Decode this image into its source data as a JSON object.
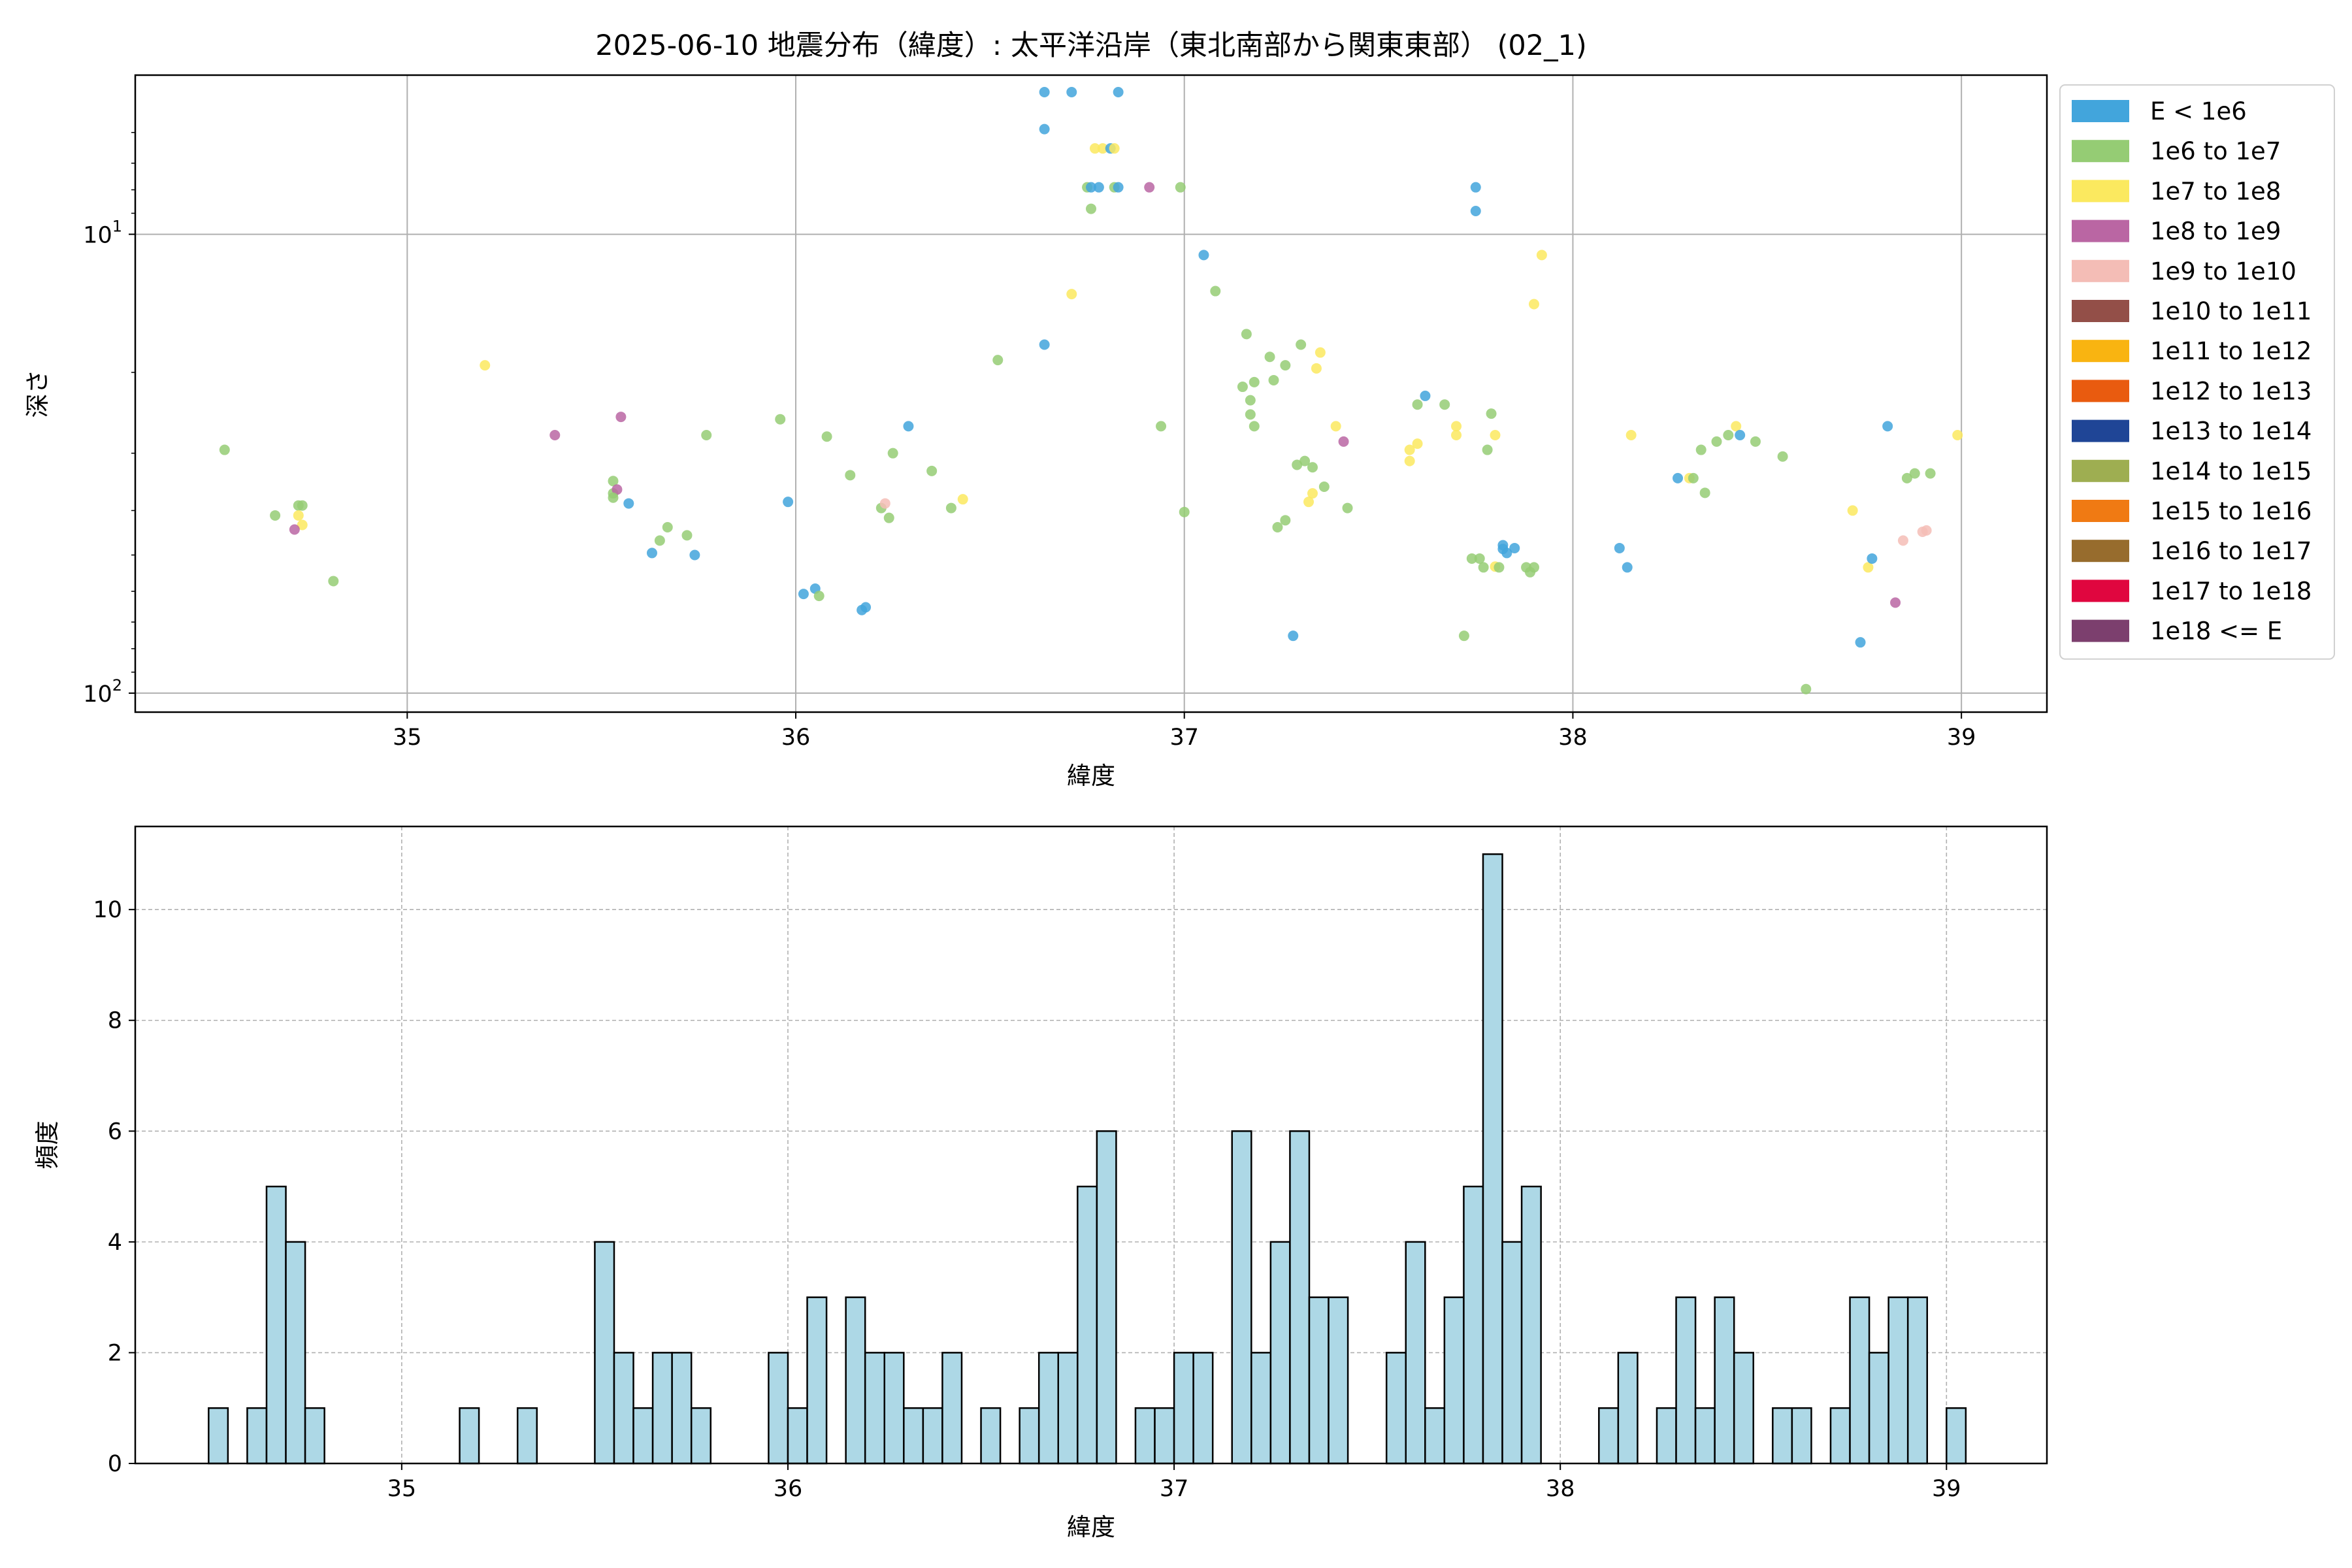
{
  "figure_title": "2025-06-10 地震分布（緯度）: 太平洋沿岸（東北南部から関東東部） (02_1)",
  "chart_data": [
    {
      "type": "scatter",
      "title": "2025-06-10 地震分布（緯度）: 太平洋沿岸（東北南部から関東東部） (02_1)",
      "xlabel": "緯度",
      "ylabel": "深さ",
      "xlim": [
        34.3,
        39.22
      ],
      "ylim": [
        110,
        4.5
      ],
      "yscale": "log",
      "y_inverted": true,
      "grid": true,
      "legend_position": "outside-right",
      "xticks": [
        "35",
        "36",
        "37",
        "38",
        "39"
      ],
      "xtick_values": [
        35,
        36,
        37,
        38,
        39
      ],
      "yticks": [
        {
          "base": "10",
          "exp": "1",
          "value": 10
        },
        {
          "base": "10",
          "exp": "2",
          "value": 100
        }
      ],
      "legend": [
        {
          "label": "E < 1e6",
          "color": "#42a5dc"
        },
        {
          "label": "1e6 to 1e7",
          "color": "#95cc74"
        },
        {
          "label": "1e7 to 1e8",
          "color": "#fbe95f"
        },
        {
          "label": "1e8 to 1e9",
          "color": "#ba66a3"
        },
        {
          "label": "1e9 to 1e10",
          "color": "#f4bdb6"
        },
        {
          "label": "1e10 to 1e11",
          "color": "#934f48"
        },
        {
          "label": "1e11 to 1e12",
          "color": "#f9b411"
        },
        {
          "label": "1e12 to 1e13",
          "color": "#e95b0f"
        },
        {
          "label": "1e13 to 1e14",
          "color": "#1f4596"
        },
        {
          "label": "1e14 to 1e15",
          "color": "#9eae51"
        },
        {
          "label": "1e15 to 1e16",
          "color": "#f07a13"
        },
        {
          "label": "1e16 to 1e17",
          "color": "#976c2d"
        },
        {
          "label": "1e17 to 1e18",
          "color": "#e0063f"
        },
        {
          "label": "1e18 <= E",
          "color": "#7c3f6e"
        }
      ],
      "points": [
        [
          34.53,
          29.5,
          1
        ],
        [
          34.66,
          41,
          1
        ],
        [
          34.72,
          39,
          1
        ],
        [
          34.73,
          39,
          1
        ],
        [
          34.72,
          41,
          2
        ],
        [
          34.73,
          43,
          2
        ],
        [
          34.71,
          44,
          3
        ],
        [
          34.81,
          57,
          1
        ],
        [
          35.2,
          19.3,
          2
        ],
        [
          35.38,
          27.4,
          3
        ],
        [
          35.53,
          34.5,
          1
        ],
        [
          35.53,
          36.7,
          1
        ],
        [
          35.54,
          36,
          3
        ],
        [
          35.53,
          37.5,
          1
        ],
        [
          35.55,
          25,
          3
        ],
        [
          35.57,
          38.6,
          0
        ],
        [
          35.63,
          49.5,
          0
        ],
        [
          35.65,
          46.5,
          1
        ],
        [
          35.67,
          43.5,
          1
        ],
        [
          35.72,
          45.3,
          1
        ],
        [
          35.74,
          50,
          0
        ],
        [
          35.77,
          27.4,
          1
        ],
        [
          35.96,
          25.3,
          1
        ],
        [
          35.98,
          38.3,
          0
        ],
        [
          36.02,
          60.8,
          0
        ],
        [
          36.05,
          59.2,
          0
        ],
        [
          36.06,
          61.4,
          1
        ],
        [
          36.08,
          27.6,
          1
        ],
        [
          36.14,
          33.5,
          1
        ],
        [
          36.17,
          65.9,
          0
        ],
        [
          36.18,
          65,
          0
        ],
        [
          36.22,
          39.5,
          1
        ],
        [
          36.23,
          38.6,
          4
        ],
        [
          36.24,
          41.5,
          1
        ],
        [
          36.25,
          30,
          1
        ],
        [
          36.29,
          26.2,
          0
        ],
        [
          36.35,
          32.8,
          1
        ],
        [
          36.4,
          39.5,
          1
        ],
        [
          36.43,
          37.8,
          2
        ],
        [
          36.52,
          18.8,
          1
        ],
        [
          36.64,
          17.4,
          0
        ],
        [
          36.64,
          4.9,
          0
        ],
        [
          36.64,
          5.9,
          0
        ],
        [
          36.71,
          4.9,
          0
        ],
        [
          36.75,
          7.9,
          1
        ],
        [
          36.76,
          7.9,
          0
        ],
        [
          36.76,
          8.8,
          1
        ],
        [
          36.77,
          6.5,
          2
        ],
        [
          36.78,
          7.9,
          0
        ],
        [
          36.79,
          6.5,
          2
        ],
        [
          36.81,
          6.5,
          0
        ],
        [
          36.82,
          7.9,
          1
        ],
        [
          36.83,
          7.9,
          0
        ],
        [
          36.82,
          6.5,
          2
        ],
        [
          36.83,
          4.9,
          0
        ],
        [
          36.71,
          13.5,
          2
        ],
        [
          36.91,
          7.9,
          3
        ],
        [
          36.94,
          26.2,
          1
        ],
        [
          36.99,
          7.9,
          1
        ],
        [
          37.0,
          40.3,
          1
        ],
        [
          37.05,
          11.1,
          0
        ],
        [
          37.08,
          13.3,
          1
        ],
        [
          37.15,
          21.5,
          1
        ],
        [
          37.16,
          16.5,
          1
        ],
        [
          37.17,
          24.7,
          1
        ],
        [
          37.17,
          23,
          1
        ],
        [
          37.18,
          26.2,
          1
        ],
        [
          37.18,
          21,
          1
        ],
        [
          37.22,
          18.5,
          1
        ],
        [
          37.23,
          20.8,
          1
        ],
        [
          37.24,
          43.5,
          1
        ],
        [
          37.26,
          19.3,
          1
        ],
        [
          37.26,
          42,
          1
        ],
        [
          37.29,
          31.8,
          1
        ],
        [
          37.3,
          17.4,
          1
        ],
        [
          37.31,
          31.2,
          1
        ],
        [
          37.32,
          38.3,
          2
        ],
        [
          37.33,
          32.2,
          1
        ],
        [
          37.33,
          36.7,
          2
        ],
        [
          37.34,
          19.6,
          2
        ],
        [
          37.35,
          18.1,
          2
        ],
        [
          37.36,
          35.5,
          1
        ],
        [
          37.39,
          26.2,
          2
        ],
        [
          37.41,
          28.3,
          3
        ],
        [
          37.42,
          39.5,
          1
        ],
        [
          37.28,
          75,
          0
        ],
        [
          37.58,
          31.2,
          2
        ],
        [
          37.58,
          29.5,
          2
        ],
        [
          37.6,
          28.6,
          2
        ],
        [
          37.6,
          23.5,
          1
        ],
        [
          37.62,
          22.5,
          0
        ],
        [
          37.67,
          23.5,
          1
        ],
        [
          37.7,
          26.2,
          2
        ],
        [
          37.7,
          27.4,
          2
        ],
        [
          37.72,
          75,
          1
        ],
        [
          37.74,
          50.9,
          1
        ],
        [
          37.75,
          7.9,
          0
        ],
        [
          37.75,
          8.9,
          0
        ],
        [
          37.76,
          50.9,
          1
        ],
        [
          37.77,
          53.2,
          1
        ],
        [
          37.78,
          29.5,
          1
        ],
        [
          37.79,
          24.6,
          1
        ],
        [
          37.8,
          27.4,
          2
        ],
        [
          37.8,
          53,
          2
        ],
        [
          37.81,
          53.2,
          1
        ],
        [
          37.82,
          47.6,
          0
        ],
        [
          37.82,
          48.5,
          0
        ],
        [
          37.83,
          49.5,
          0
        ],
        [
          37.85,
          48.3,
          0
        ],
        [
          37.88,
          53.2,
          1
        ],
        [
          37.89,
          54.5,
          1
        ],
        [
          37.9,
          53.2,
          1
        ],
        [
          37.9,
          14.2,
          2
        ],
        [
          37.92,
          11.1,
          2
        ],
        [
          38.12,
          48.3,
          0
        ],
        [
          38.14,
          53.2,
          0
        ],
        [
          38.15,
          27.4,
          2
        ],
        [
          38.27,
          34,
          0
        ],
        [
          38.3,
          34,
          2
        ],
        [
          38.31,
          34,
          1
        ],
        [
          38.33,
          29.5,
          1
        ],
        [
          38.34,
          36.6,
          1
        ],
        [
          38.37,
          28.3,
          1
        ],
        [
          38.4,
          27.4,
          1
        ],
        [
          38.42,
          26.2,
          2
        ],
        [
          38.43,
          27.4,
          0
        ],
        [
          38.47,
          28.3,
          1
        ],
        [
          38.54,
          30.5,
          1
        ],
        [
          38.6,
          98,
          1
        ],
        [
          38.72,
          40,
          2
        ],
        [
          38.74,
          77.5,
          0
        ],
        [
          38.76,
          53.2,
          2
        ],
        [
          38.77,
          50.9,
          0
        ],
        [
          38.81,
          26.2,
          0
        ],
        [
          38.83,
          63.5,
          3
        ],
        [
          38.85,
          46.5,
          4
        ],
        [
          38.86,
          34,
          1
        ],
        [
          38.88,
          33.2,
          1
        ],
        [
          38.9,
          44.5,
          4
        ],
        [
          38.91,
          44.2,
          4
        ],
        [
          38.92,
          33.2,
          1
        ],
        [
          38.99,
          27.4,
          2
        ]
      ]
    },
    {
      "type": "bar",
      "xlabel": "緯度",
      "ylabel": "頻度",
      "xlim": [
        34.31,
        39.26
      ],
      "ylim": [
        0,
        11.5
      ],
      "grid": true,
      "xticks": [
        "35",
        "36",
        "37",
        "38",
        "39"
      ],
      "xtick_values": [
        35,
        36,
        37,
        38,
        39
      ],
      "yticks": [
        "0",
        "2",
        "4",
        "6",
        "8",
        "10"
      ],
      "ytick_values": [
        0,
        2,
        4,
        6,
        8,
        10
      ],
      "bar_color": "#add8e6",
      "bin_start": 34.5,
      "bin_width": 0.05,
      "values": [
        1,
        0,
        1,
        5,
        4,
        1,
        0,
        0,
        0,
        0,
        0,
        0,
        0,
        1,
        0,
        0,
        1,
        0,
        0,
        0,
        4,
        2,
        1,
        2,
        2,
        1,
        0,
        0,
        0,
        2,
        1,
        3,
        0,
        3,
        2,
        2,
        1,
        1,
        2,
        0,
        1,
        0,
        1,
        2,
        2,
        5,
        6,
        0,
        1,
        1,
        2,
        2,
        0,
        6,
        2,
        4,
        6,
        3,
        3,
        0,
        0,
        2,
        4,
        1,
        3,
        5,
        11,
        4,
        5,
        0,
        0,
        0,
        1,
        2,
        0,
        1,
        3,
        1,
        3,
        2,
        0,
        1,
        1,
        0,
        1,
        3,
        2,
        3,
        3,
        0,
        1
      ]
    }
  ]
}
